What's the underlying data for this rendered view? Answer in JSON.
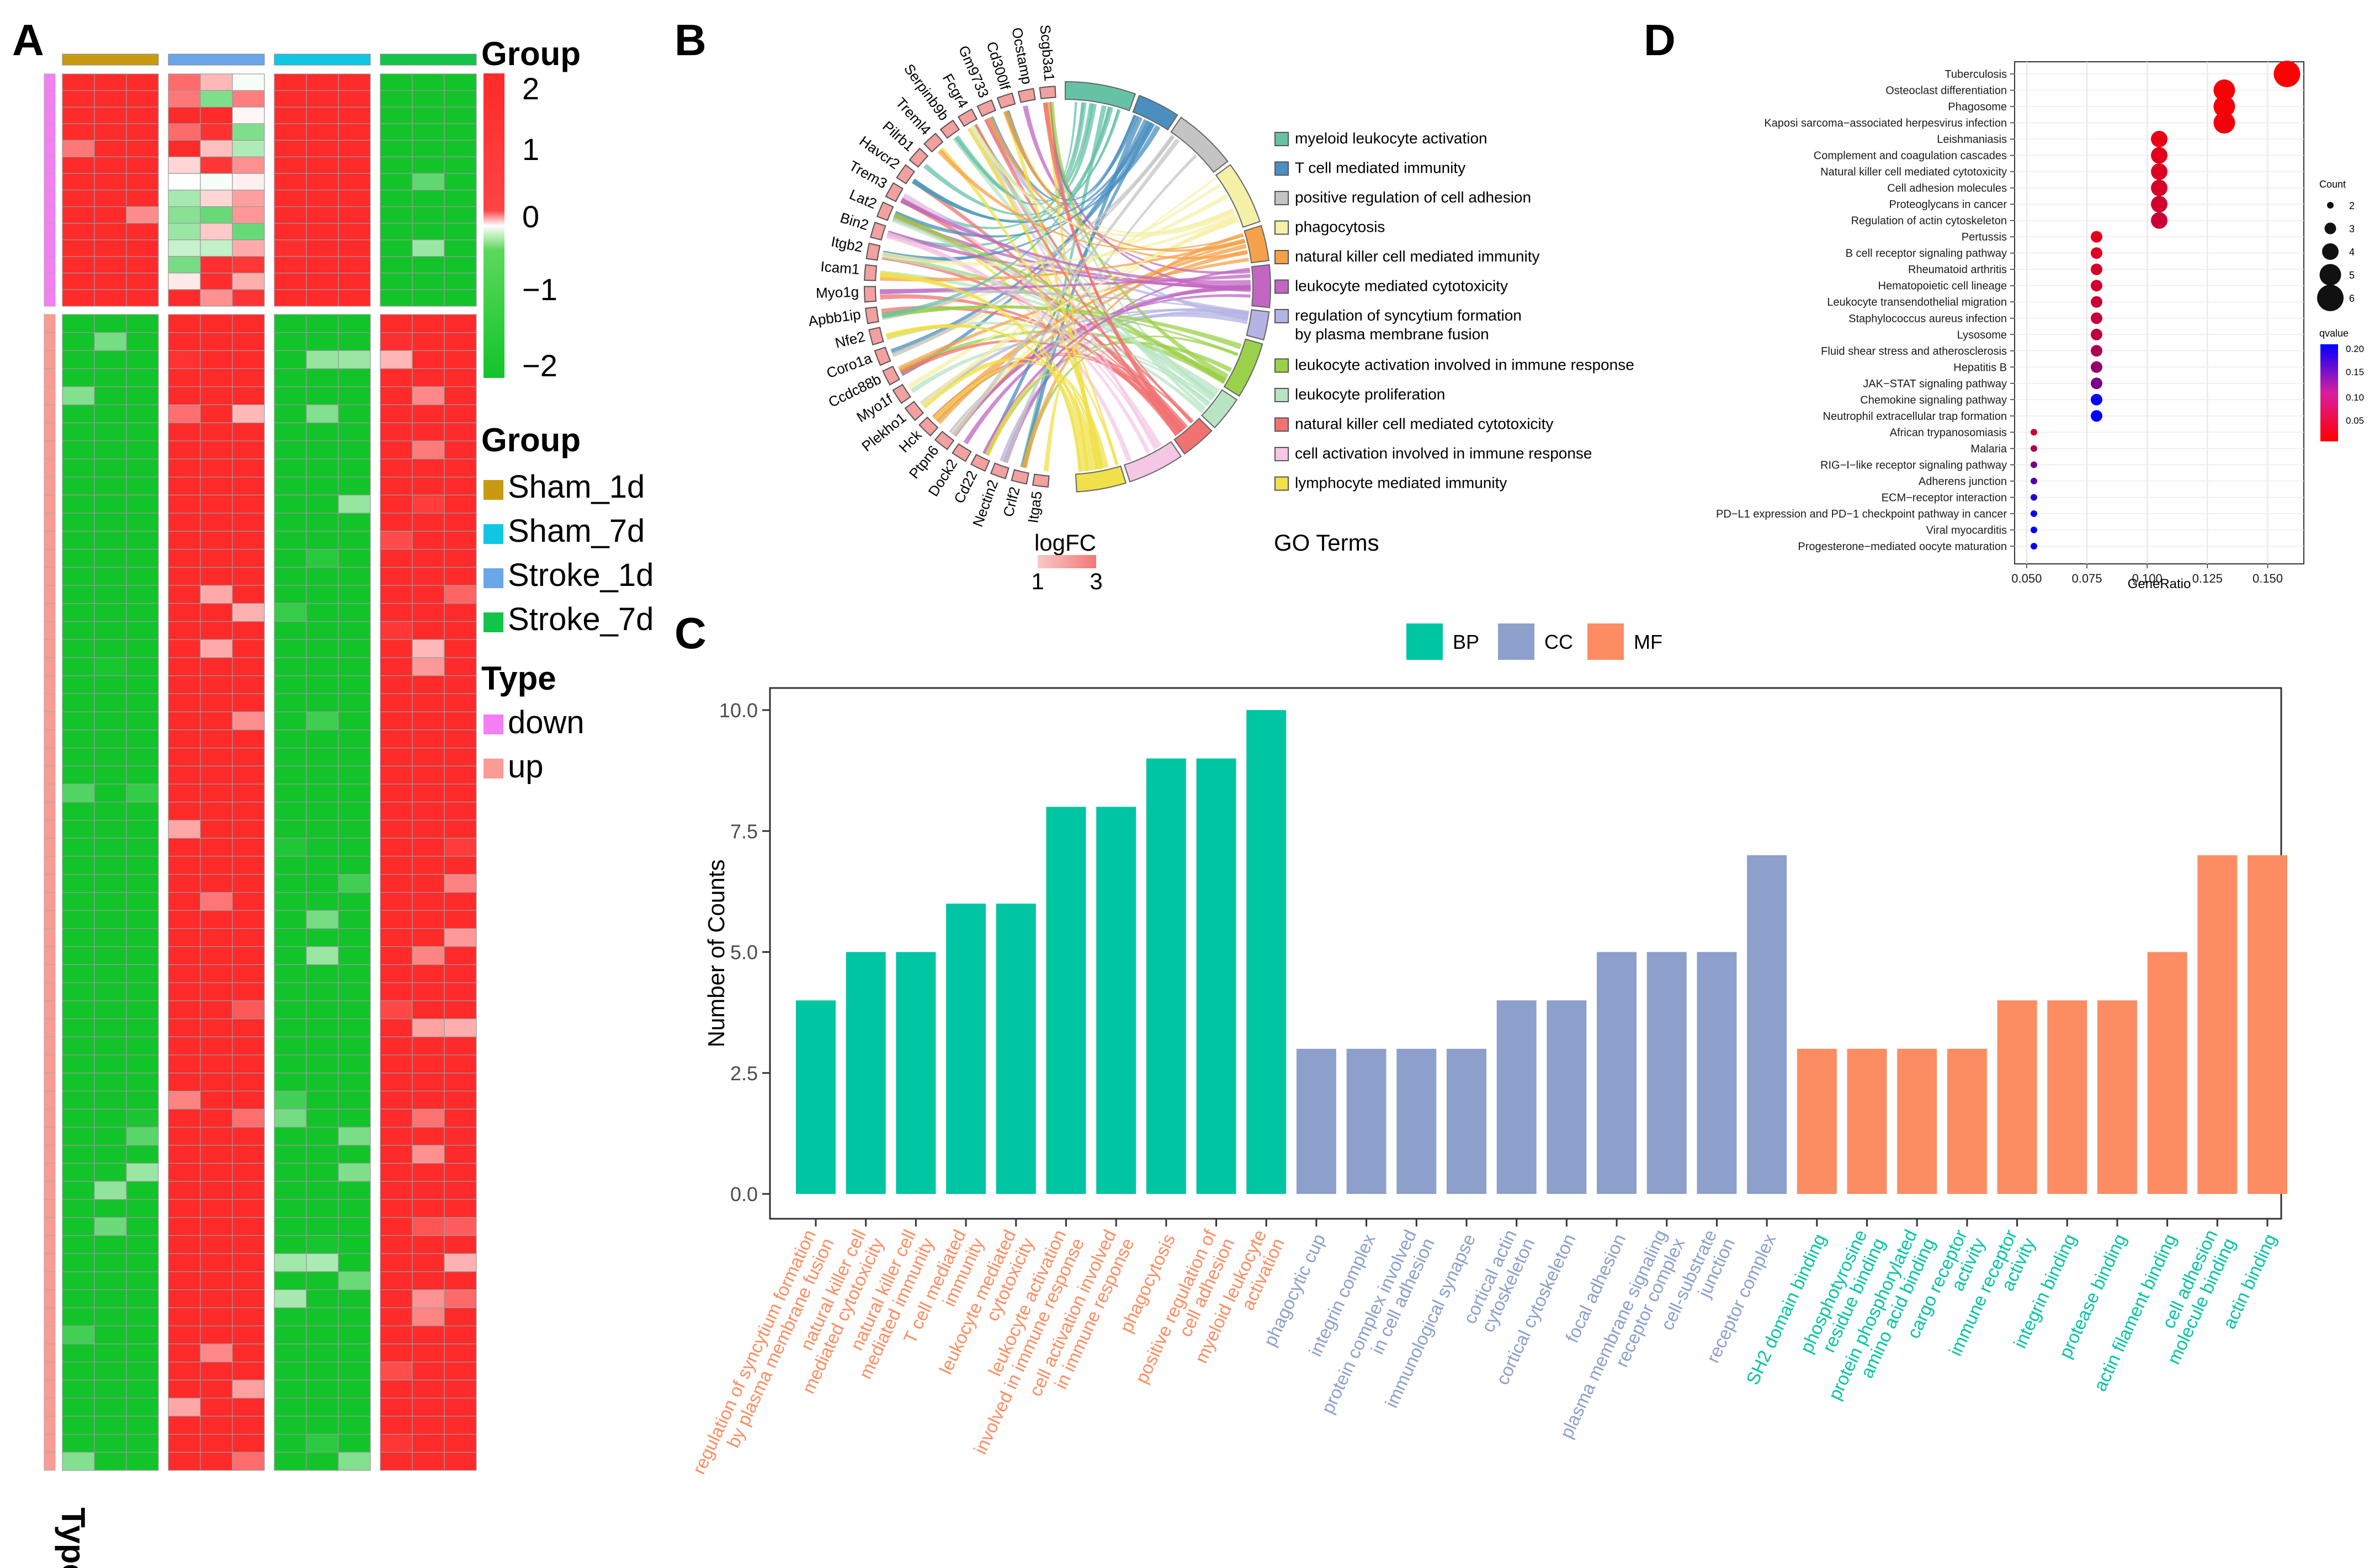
{
  "panels": {
    "A": "A",
    "B": "B",
    "C": "C",
    "D": "D"
  },
  "heatmap": {
    "groups": [
      "Sham_1d",
      "Stroke_1d",
      "Sham_7d",
      "Stroke_7d"
    ],
    "group_colors": {
      "Sham_1d": "#c89a12",
      "Stroke_1d": "#6aa6e8",
      "Sham_7d": "#11c6e2",
      "Stroke_7d": "#12c44a"
    },
    "replicates_per_group": 3,
    "rows_down": 14,
    "rows_up": 64,
    "color_scale": {
      "low": "#12c42a",
      "mid": "#ffffff",
      "high": "#ff2a2a",
      "min": -2,
      "max": 2
    },
    "type_colors": {
      "down": "#f47ef4",
      "up": "#f89c94"
    },
    "legend_group_title": "Group",
    "legend_type_title": "Type",
    "legend_types": [
      "down",
      "up"
    ],
    "scale_ticks": [
      "2",
      "1",
      "0",
      "−1",
      "−2"
    ],
    "scale_title": "Group",
    "type_label": "Type"
  },
  "chord": {
    "genes": [
      "Scgb3a1",
      "Ocstamp",
      "Cd300lf",
      "Gm9733",
      "Fcgr4",
      "Serpinb9b",
      "Treml4",
      "Pilrb1",
      "Havcr2",
      "Trem3",
      "Lat2",
      "Bin2",
      "Itgb2",
      "Icam1",
      "Myo1g",
      "Apbb1ip",
      "Nfe2",
      "Coro1a",
      "Ccdc88b",
      "Myo1f",
      "Plekho1",
      "Hck",
      "Ptpn6",
      "Dock2",
      "Cd22",
      "Nectin2",
      "Crlf2",
      "Itga5"
    ],
    "terms": [
      {
        "label": "myeloid leukocyte activation",
        "color": "#66c2a5"
      },
      {
        "label": "T cell mediated immunity",
        "color": "#4a8fc0"
      },
      {
        "label": "positive regulation of cell adhesion",
        "color": "#c4c4c4"
      },
      {
        "label": "phagocytosis",
        "color": "#f5f0a8"
      },
      {
        "label": "natural killer cell mediated immunity",
        "color": "#f5a14a"
      },
      {
        "label": "leukocyte mediated cytotoxicity",
        "color": "#c266c2"
      },
      {
        "label": "regulation of syncytium formation",
        "label2": "by plasma membrane fusion",
        "color": "#b4b4e4"
      },
      {
        "label": "leukocyte activation involved in immune response",
        "color": "#9ad04a"
      },
      {
        "label": "leukocyte proliferation",
        "color": "#b8e4c4"
      },
      {
        "label": "natural killer cell mediated cytotoxicity",
        "color": "#f07272"
      },
      {
        "label": "cell activation involved in immune response",
        "color": "#f4c8e4"
      },
      {
        "label": "lymphocyte mediated immunity",
        "color": "#f0e04a"
      }
    ],
    "logfc_title": "logFC",
    "logfc_min_label": "1",
    "logfc_max_label": "3",
    "terms_title": "GO Terms"
  },
  "chart_data": [
    {
      "type": "bar",
      "title": "",
      "xlabel": "",
      "ylabel": "Number of Counts",
      "ylim": [
        0,
        10.5
      ],
      "yticks": [
        "0.0",
        "2.5",
        "5.0",
        "7.5",
        "10.0"
      ],
      "legend": [
        {
          "name": "BP",
          "color": "#00c5a3"
        },
        {
          "name": "CC",
          "color": "#8da0cb"
        },
        {
          "name": "MF",
          "color": "#fc8d62"
        }
      ],
      "categories": [
        {
          "label": "regulation of syncytium formation by plasma membrane fusion",
          "value": 4,
          "ont": "BP"
        },
        {
          "label": "natural killer cell mediated cytotoxicity",
          "value": 5,
          "ont": "BP"
        },
        {
          "label": "natural killer cell mediated immunity",
          "value": 5,
          "ont": "BP"
        },
        {
          "label": "T cell mediated immunity",
          "value": 6,
          "ont": "BP"
        },
        {
          "label": "leukocyte mediated cytotoxicity",
          "value": 6,
          "ont": "BP"
        },
        {
          "label": "leukocyte activation involved in immune response",
          "value": 8,
          "ont": "BP"
        },
        {
          "label": "cell activation involved in immune response",
          "value": 8,
          "ont": "BP"
        },
        {
          "label": "phagocytosis",
          "value": 9,
          "ont": "BP"
        },
        {
          "label": "positive regulation of cell adhesion",
          "value": 9,
          "ont": "BP"
        },
        {
          "label": "myeloid leukocyte activation",
          "value": 10,
          "ont": "BP"
        },
        {
          "label": "phagocytic cup",
          "value": 3,
          "ont": "CC"
        },
        {
          "label": "integrin complex",
          "value": 3,
          "ont": "CC"
        },
        {
          "label": "protein complex involved in cell adhesion",
          "value": 3,
          "ont": "CC"
        },
        {
          "label": "immunological synapse",
          "value": 3,
          "ont": "CC"
        },
        {
          "label": "cortical actin cytoskeleton",
          "value": 4,
          "ont": "CC"
        },
        {
          "label": "cortical cytoskeleton",
          "value": 4,
          "ont": "CC"
        },
        {
          "label": "focal adhesion",
          "value": 5,
          "ont": "CC"
        },
        {
          "label": "plasma membrane signaling receptor complex",
          "value": 5,
          "ont": "CC"
        },
        {
          "label": "cell-substrate junction",
          "value": 5,
          "ont": "CC"
        },
        {
          "label": "receptor complex",
          "value": 7,
          "ont": "CC"
        },
        {
          "label": "SH2 domain binding",
          "value": 3,
          "ont": "MF"
        },
        {
          "label": "phosphotyrosine residue binding",
          "value": 3,
          "ont": "MF"
        },
        {
          "label": "protein phosphorylated amino acid binding",
          "value": 3,
          "ont": "MF"
        },
        {
          "label": "cargo receptor activity",
          "value": 3,
          "ont": "MF"
        },
        {
          "label": "immune receptor activity",
          "value": 4,
          "ont": "MF"
        },
        {
          "label": "integrin binding",
          "value": 4,
          "ont": "MF"
        },
        {
          "label": "protease binding",
          "value": 4,
          "ont": "MF"
        },
        {
          "label": "actin filament binding",
          "value": 5,
          "ont": "MF"
        },
        {
          "label": "cell adhesion molecule binding",
          "value": 7,
          "ont": "MF"
        },
        {
          "label": "actin binding",
          "value": 7,
          "ont": "MF"
        }
      ],
      "tick_label_colors": {
        "BP": "#fc8d62",
        "CC": "#8da0cb",
        "MF": "#00c5a3"
      }
    },
    {
      "type": "scatter",
      "title": "",
      "xlabel": "GeneRatio",
      "ylabel": "",
      "xlim": [
        0.045,
        0.165
      ],
      "xticks": [
        0.05,
        0.075,
        0.1,
        0.125,
        0.15
      ],
      "xtick_labels": [
        "0.050",
        "0.075",
        "0.100",
        "0.125",
        "0.150"
      ],
      "size_legend_title": "Count",
      "size_legend": [
        2,
        3,
        4,
        5,
        6
      ],
      "color_legend_title": "qvalue",
      "color_legend_ticks": [
        "0.20",
        "0.15",
        "0.10",
        "0.05"
      ],
      "color_scale": {
        "low": "#ff0000",
        "high": "#0000ff",
        "min": 0.02,
        "max": 0.21
      },
      "points": [
        {
          "term": "Tuberculosis",
          "x": 0.158,
          "count": 6,
          "q": 0.02
        },
        {
          "term": "Osteoclast differentiation",
          "x": 0.132,
          "count": 5,
          "q": 0.025
        },
        {
          "term": "Phagosome",
          "x": 0.132,
          "count": 5,
          "q": 0.025
        },
        {
          "term": "Kaposi sarcoma−associated herpesvirus infection",
          "x": 0.132,
          "count": 5,
          "q": 0.028
        },
        {
          "term": "Leishmaniasis",
          "x": 0.105,
          "count": 4,
          "q": 0.035
        },
        {
          "term": "Complement and coagulation cascades",
          "x": 0.105,
          "count": 4,
          "q": 0.04
        },
        {
          "term": "Natural killer cell mediated cytotoxicity",
          "x": 0.105,
          "count": 4,
          "q": 0.045
        },
        {
          "term": "Cell adhesion molecules",
          "x": 0.105,
          "count": 4,
          "q": 0.05
        },
        {
          "term": "Proteoglycans in cancer",
          "x": 0.105,
          "count": 4,
          "q": 0.055
        },
        {
          "term": "Regulation of actin cytoskeleton",
          "x": 0.105,
          "count": 4,
          "q": 0.06
        },
        {
          "term": "Pertussis",
          "x": 0.079,
          "count": 3,
          "q": 0.04
        },
        {
          "term": "B cell receptor signaling pathway",
          "x": 0.079,
          "count": 3,
          "q": 0.045
        },
        {
          "term": "Rheumatoid arthritis",
          "x": 0.079,
          "count": 3,
          "q": 0.05
        },
        {
          "term": "Hematopoietic cell lineage",
          "x": 0.079,
          "count": 3,
          "q": 0.055
        },
        {
          "term": "Leukocyte transendothelial migration",
          "x": 0.079,
          "count": 3,
          "q": 0.06
        },
        {
          "term": "Staphylococcus aureus infection",
          "x": 0.079,
          "count": 3,
          "q": 0.065
        },
        {
          "term": "Lysosome",
          "x": 0.079,
          "count": 3,
          "q": 0.07
        },
        {
          "term": "Fluid shear stress and atherosclerosis",
          "x": 0.079,
          "count": 3,
          "q": 0.08
        },
        {
          "term": "Hepatitis B",
          "x": 0.079,
          "count": 3,
          "q": 0.1
        },
        {
          "term": "JAK−STAT signaling pathway",
          "x": 0.079,
          "count": 3,
          "q": 0.12
        },
        {
          "term": "Chemokine signaling pathway",
          "x": 0.079,
          "count": 3,
          "q": 0.2
        },
        {
          "term": "Neutrophil extracellular trap formation",
          "x": 0.079,
          "count": 3,
          "q": 0.21
        },
        {
          "term": "African trypanosomiasis",
          "x": 0.053,
          "count": 2,
          "q": 0.06
        },
        {
          "term": "Malaria",
          "x": 0.053,
          "count": 2,
          "q": 0.08
        },
        {
          "term": "RIG−I−like receptor signaling pathway",
          "x": 0.053,
          "count": 2,
          "q": 0.12
        },
        {
          "term": "Adherens junction",
          "x": 0.053,
          "count": 2,
          "q": 0.15
        },
        {
          "term": "ECM−receptor interaction",
          "x": 0.053,
          "count": 2,
          "q": 0.18
        },
        {
          "term": "PD−L1 expression and PD−1 checkpoint pathway in cancer",
          "x": 0.053,
          "count": 2,
          "q": 0.2
        },
        {
          "term": "Viral myocarditis",
          "x": 0.053,
          "count": 2,
          "q": 0.21
        },
        {
          "term": "Progesterone−mediated oocyte maturation",
          "x": 0.053,
          "count": 2,
          "q": 0.21
        }
      ]
    }
  ]
}
